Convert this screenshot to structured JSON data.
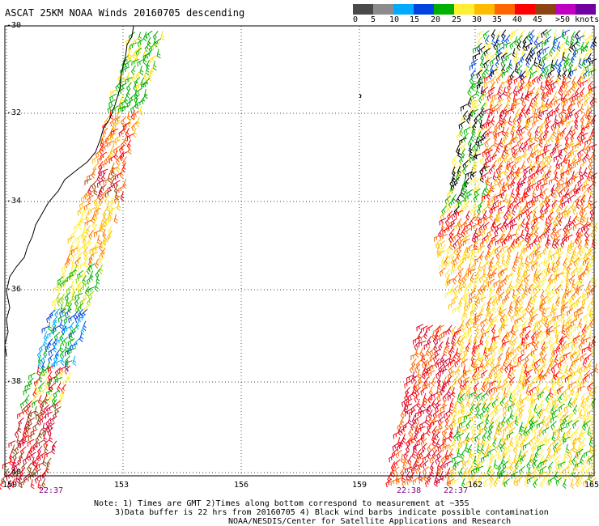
{
  "title": "ASCAT 25KM NOAA Winds 20160705 descending",
  "legend": {
    "colors": [
      "#333333",
      "#9b9b9b",
      "#00b4f0",
      "#0000e6",
      "#00be00",
      "#1e1e1e",
      "#ffd400",
      "#ff9900",
      "#ff2a00",
      "#e0001e",
      "#a0522d",
      "#c8a2c8",
      "#b400ff",
      "#5a0096"
    ],
    "labels": [
      "0",
      "5",
      "10",
      "15",
      "20",
      "25",
      "30",
      "35",
      "40",
      "45",
      ">50 knots"
    ]
  },
  "axes": {
    "lat_labels": [
      "-30",
      "-32",
      "-34",
      "-36",
      "-38",
      "-40"
    ],
    "lon_labels": [
      "150",
      "153",
      "156",
      "159",
      "162",
      "165"
    ]
  },
  "time_labels": [
    "22:37",
    "22:38",
    "22:37"
  ],
  "notes": [
    "Note: 1) Times are GMT 2)Times along bottom correspond to measurement at ~35S",
    "3)Data buffer is 22 hrs from 20160705 4) Black wind barbs indicate possible contamination",
    "NOAA/NESDIS/Center for Satellite Applications and Research"
  ],
  "map": {
    "region": "Eastern Australia coast (NSW) and Tasman Sea",
    "icons": [
      "coastline",
      "wind-barb"
    ]
  }
}
